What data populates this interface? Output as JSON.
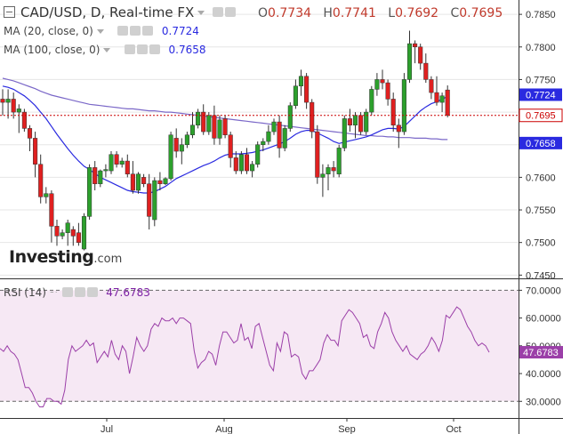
{
  "header": {
    "symbol_title": "CAD/USD, D, Real-time FX",
    "ohlc": [
      {
        "key": "O",
        "value": "0.7734"
      },
      {
        "key": "H",
        "value": "0.7741"
      },
      {
        "key": "L",
        "value": "0.7692"
      },
      {
        "key": "C",
        "value": "0.7695"
      }
    ]
  },
  "indicators": {
    "ma20": {
      "label": "MA (20, close, 0)",
      "value": "0.7724"
    },
    "ma100": {
      "label": "MA (100, close, 0)",
      "value": "0.7658"
    },
    "rsi": {
      "label": "RSI (14)",
      "value": "47.6783"
    }
  },
  "logo": {
    "text": "Investing",
    "domain": ".com"
  },
  "colors": {
    "up": "#2ca02c",
    "down": "#e02020",
    "ma20": "#2a2ae0",
    "ma100": "#7b68c8",
    "rsi_line": "#9b3fa8",
    "rsi_band": "#f6e8f4",
    "price_line": "#cc0000"
  },
  "chart_data": [
    {
      "type": "candlestick",
      "title": "CAD/USD, D, Real-time FX",
      "x_tick_labels": [
        "Jul",
        "Aug",
        "Sep",
        "Oct"
      ],
      "y_tick_labels": [
        "0.7850",
        "0.7800",
        "0.7750",
        "0.7700",
        "0.7650",
        "0.7600",
        "0.7550",
        "0.7500",
        "0.7450"
      ],
      "ylim": [
        0.7445,
        0.7872
      ],
      "price_line": 0.7695,
      "value_tags": [
        {
          "label": "0.7724",
          "value": 0.7724,
          "kind": "ma20"
        },
        {
          "label": "0.7695",
          "value": 0.7695,
          "kind": "price"
        },
        {
          "label": "0.7658",
          "value": 0.7658,
          "kind": "ma100"
        }
      ],
      "candles": [
        [
          0.772,
          0.7735,
          0.7695,
          0.7715
        ],
        [
          0.7715,
          0.7735,
          0.769,
          0.772
        ],
        [
          0.772,
          0.773,
          0.769,
          0.77
        ],
        [
          0.77,
          0.7712,
          0.7668,
          0.7705
        ],
        [
          0.77,
          0.7705,
          0.767,
          0.7675
        ],
        [
          0.7675,
          0.768,
          0.764,
          0.766
        ],
        [
          0.766,
          0.767,
          0.76,
          0.762
        ],
        [
          0.762,
          0.7635,
          0.756,
          0.757
        ],
        [
          0.757,
          0.7585,
          0.756,
          0.7575
        ],
        [
          0.7575,
          0.758,
          0.75,
          0.7525
        ],
        [
          0.7525,
          0.7535,
          0.7495,
          0.751
        ],
        [
          0.751,
          0.752,
          0.7505,
          0.7515
        ],
        [
          0.7515,
          0.7535,
          0.7495,
          0.753
        ],
        [
          0.752,
          0.7525,
          0.7495,
          0.751
        ],
        [
          0.7515,
          0.753,
          0.7495,
          0.75
        ],
        [
          0.749,
          0.7545,
          0.7488,
          0.754
        ],
        [
          0.754,
          0.762,
          0.7535,
          0.7615
        ],
        [
          0.7615,
          0.7625,
          0.758,
          0.759
        ],
        [
          0.759,
          0.7612,
          0.7585,
          0.761
        ],
        [
          0.761,
          0.762,
          0.76,
          0.7612
        ],
        [
          0.761,
          0.764,
          0.7605,
          0.7635
        ],
        [
          0.7635,
          0.764,
          0.7615,
          0.762
        ],
        [
          0.762,
          0.763,
          0.7615,
          0.7625
        ],
        [
          0.7625,
          0.7635,
          0.76,
          0.7605
        ],
        [
          0.7605,
          0.7625,
          0.7575,
          0.758
        ],
        [
          0.758,
          0.7608,
          0.7575,
          0.7605
        ],
        [
          0.76,
          0.7605,
          0.7585,
          0.759
        ],
        [
          0.759,
          0.7605,
          0.752,
          0.754
        ],
        [
          0.7535,
          0.76,
          0.7525,
          0.7595
        ],
        [
          0.7595,
          0.7608,
          0.758,
          0.759
        ],
        [
          0.759,
          0.76,
          0.7588,
          0.7598
        ],
        [
          0.7598,
          0.767,
          0.7595,
          0.7665
        ],
        [
          0.766,
          0.7675,
          0.763,
          0.764
        ],
        [
          0.764,
          0.766,
          0.762,
          0.765
        ],
        [
          0.765,
          0.767,
          0.7645,
          0.7665
        ],
        [
          0.7665,
          0.77,
          0.766,
          0.768
        ],
        [
          0.768,
          0.7705,
          0.7675,
          0.77
        ],
        [
          0.77,
          0.7712,
          0.7665,
          0.767
        ],
        [
          0.767,
          0.77,
          0.7665,
          0.7695
        ],
        [
          0.7695,
          0.771,
          0.765,
          0.766
        ],
        [
          0.766,
          0.7695,
          0.765,
          0.7688
        ],
        [
          0.769,
          0.7695,
          0.766,
          0.7665
        ],
        [
          0.7665,
          0.767,
          0.7615,
          0.763
        ],
        [
          0.763,
          0.764,
          0.7605,
          0.761
        ],
        [
          0.761,
          0.764,
          0.7605,
          0.7635
        ],
        [
          0.7635,
          0.7645,
          0.7605,
          0.761
        ],
        [
          0.761,
          0.7625,
          0.76,
          0.762
        ],
        [
          0.762,
          0.7655,
          0.7615,
          0.765
        ],
        [
          0.765,
          0.766,
          0.764,
          0.7655
        ],
        [
          0.7655,
          0.768,
          0.765,
          0.767
        ],
        [
          0.767,
          0.769,
          0.7665,
          0.7685
        ],
        [
          0.7685,
          0.7695,
          0.763,
          0.7645
        ],
        [
          0.7645,
          0.768,
          0.764,
          0.7675
        ],
        [
          0.7675,
          0.7715,
          0.767,
          0.771
        ],
        [
          0.771,
          0.775,
          0.7705,
          0.774
        ],
        [
          0.774,
          0.7765,
          0.7725,
          0.7755
        ],
        [
          0.7755,
          0.776,
          0.7705,
          0.7715
        ],
        [
          0.7715,
          0.772,
          0.766,
          0.767
        ],
        [
          0.767,
          0.768,
          0.759,
          0.76
        ],
        [
          0.76,
          0.762,
          0.757,
          0.7605
        ],
        [
          0.7605,
          0.762,
          0.758,
          0.7615
        ],
        [
          0.7615,
          0.7625,
          0.76,
          0.761
        ],
        [
          0.7605,
          0.765,
          0.76,
          0.7645
        ],
        [
          0.7645,
          0.7695,
          0.764,
          0.769
        ],
        [
          0.769,
          0.7705,
          0.767,
          0.768
        ],
        [
          0.768,
          0.77,
          0.766,
          0.7695
        ],
        [
          0.7695,
          0.77,
          0.7665,
          0.767
        ],
        [
          0.767,
          0.7705,
          0.7665,
          0.77
        ],
        [
          0.77,
          0.774,
          0.7695,
          0.7735
        ],
        [
          0.7735,
          0.776,
          0.7725,
          0.775
        ],
        [
          0.775,
          0.7765,
          0.7735,
          0.7745
        ],
        [
          0.7745,
          0.775,
          0.771,
          0.772
        ],
        [
          0.772,
          0.773,
          0.767,
          0.768
        ],
        [
          0.768,
          0.769,
          0.7645,
          0.767
        ],
        [
          0.767,
          0.776,
          0.7665,
          0.775
        ],
        [
          0.775,
          0.7825,
          0.7745,
          0.7805
        ],
        [
          0.7805,
          0.781,
          0.7775,
          0.78
        ],
        [
          0.78,
          0.7805,
          0.7765,
          0.7775
        ],
        [
          0.7775,
          0.779,
          0.7745,
          0.775
        ],
        [
          0.775,
          0.7755,
          0.772,
          0.773
        ],
        [
          0.773,
          0.7755,
          0.771,
          0.7715
        ],
        [
          0.7715,
          0.773,
          0.77,
          0.7725
        ],
        [
          0.7734,
          0.7741,
          0.7692,
          0.7695
        ]
      ],
      "ma20": [
        0.774,
        0.7738,
        0.7735,
        0.773,
        0.7725,
        0.7718,
        0.771,
        0.77,
        0.769,
        0.7678,
        0.7666,
        0.7655,
        0.7644,
        0.7634,
        0.7625,
        0.7617,
        0.7612,
        0.7606,
        0.76,
        0.7596,
        0.7592,
        0.7588,
        0.7584,
        0.758,
        0.7578,
        0.7577,
        0.7576,
        0.7576,
        0.7578,
        0.7582,
        0.7586,
        0.7592,
        0.7598,
        0.7602,
        0.7606,
        0.761,
        0.7614,
        0.7618,
        0.7621,
        0.7625,
        0.763,
        0.7634,
        0.7636,
        0.7636,
        0.7636,
        0.7637,
        0.7638,
        0.764,
        0.7642,
        0.7645,
        0.7648,
        0.7651,
        0.7655,
        0.766,
        0.7666,
        0.767,
        0.7672,
        0.7672,
        0.7668,
        0.7664,
        0.766,
        0.7655,
        0.7652,
        0.7654,
        0.7656,
        0.7658,
        0.766,
        0.7662,
        0.7665,
        0.7669,
        0.7673,
        0.7675,
        0.7675,
        0.7674,
        0.7678,
        0.7686,
        0.7694,
        0.7702,
        0.7708,
        0.7713,
        0.7716,
        0.772,
        0.7724
      ],
      "ma100": [
        0.7752,
        0.775,
        0.7748,
        0.7745,
        0.7742,
        0.7739,
        0.7736,
        0.7732,
        0.7729,
        0.7726,
        0.7724,
        0.7722,
        0.772,
        0.7718,
        0.7716,
        0.7714,
        0.7712,
        0.7711,
        0.771,
        0.7709,
        0.7708,
        0.7707,
        0.7706,
        0.7705,
        0.7705,
        0.7704,
        0.7703,
        0.7702,
        0.7702,
        0.7701,
        0.77,
        0.77,
        0.7699,
        0.7698,
        0.7697,
        0.7696,
        0.7695,
        0.7694,
        0.7693,
        0.7692,
        0.7691,
        0.769,
        0.7689,
        0.7688,
        0.7687,
        0.7686,
        0.7685,
        0.7684,
        0.7683,
        0.7682,
        0.7681,
        0.768,
        0.7679,
        0.7678,
        0.7677,
        0.7676,
        0.7675,
        0.7674,
        0.7673,
        0.7672,
        0.7671,
        0.767,
        0.7669,
        0.7668,
        0.7667,
        0.7666,
        0.7665,
        0.7664,
        0.7664,
        0.7663,
        0.7663,
        0.7662,
        0.7662,
        0.7661,
        0.7661,
        0.7661,
        0.766,
        0.766,
        0.766,
        0.7659,
        0.7659,
        0.7658,
        0.7658
      ]
    },
    {
      "type": "line",
      "title": "RSI (14)",
      "y_tick_labels": [
        "70.0000",
        "60.0000",
        "50.0000",
        "40.0000",
        "30.0000"
      ],
      "ylim": [
        24.0,
        73.0
      ],
      "bands": [
        30,
        70
      ],
      "value_tag": "47.6783",
      "values": [
        49,
        48,
        50,
        48,
        47,
        45,
        40,
        35,
        35,
        33,
        30,
        28,
        28,
        31,
        31,
        30,
        30,
        29,
        34,
        45,
        50,
        48,
        49,
        50,
        52,
        50,
        51,
        44,
        46,
        48,
        46,
        52,
        47,
        45,
        50,
        48,
        40,
        46,
        53,
        50,
        48,
        50,
        56,
        58,
        57,
        60,
        59,
        59,
        60,
        58,
        60,
        60,
        59,
        58,
        48,
        42,
        44,
        45,
        48,
        47,
        43,
        50,
        55,
        55,
        53,
        51,
        52,
        58,
        52,
        53,
        49,
        57,
        58,
        53,
        48,
        43,
        41,
        51,
        48,
        55,
        54,
        46,
        47,
        46,
        40,
        38,
        41,
        41,
        43,
        45,
        51,
        54,
        52,
        52,
        50,
        59,
        61,
        63,
        62,
        60,
        58,
        53,
        54,
        50,
        49,
        55,
        58,
        62,
        60,
        55,
        52,
        50,
        48,
        50,
        47,
        46,
        45,
        47,
        48,
        50,
        53,
        51,
        48,
        52,
        61,
        60,
        62,
        64,
        63,
        60,
        57,
        55,
        52,
        50,
        51,
        50,
        47.68
      ]
    }
  ]
}
